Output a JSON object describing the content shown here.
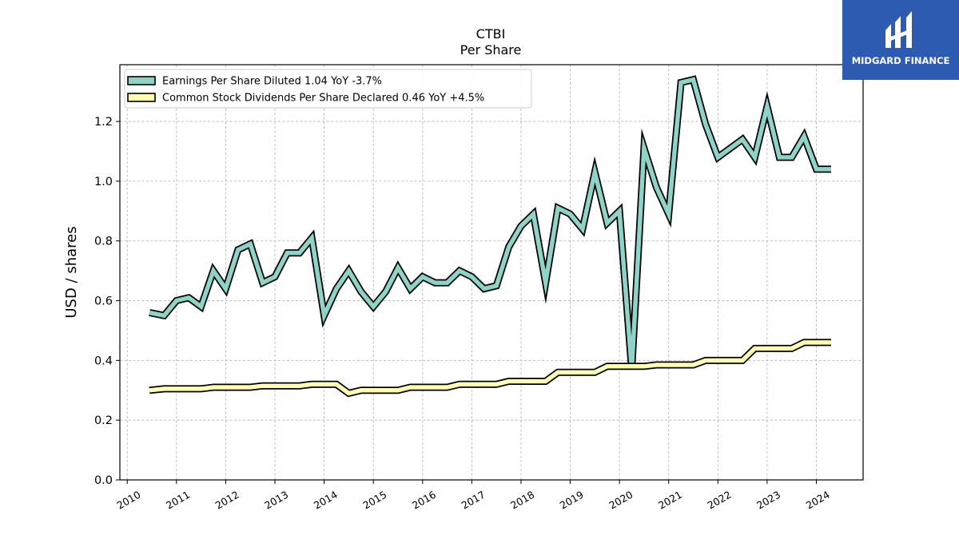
{
  "chart_data": {
    "type": "line",
    "title": "CTBI",
    "subtitle": "Per  Share",
    "ylabel": "USD / shares",
    "xlabel": "",
    "ylim": [
      0,
      1.39
    ],
    "xlim": [
      2009.85,
      2024.95
    ],
    "y_ticks": [
      "0.0",
      "0.2",
      "0.4",
      "0.6",
      "0.8",
      "1.0",
      "1.2"
    ],
    "x_ticks": [
      "2010",
      "2011",
      "2012",
      "2013",
      "2014",
      "2015",
      "2016",
      "2017",
      "2018",
      "2019",
      "2020",
      "2021",
      "2022",
      "2023",
      "2024"
    ],
    "grid": true,
    "legend_position": "top-left",
    "series": [
      {
        "name": "Earnings Per Share Diluted",
        "legend_label": "Earnings Per Share Diluted  1.04 YoY -3.7%",
        "color": "#8dd3c7",
        "x": [
          2010.45,
          2010.75,
          2011.0,
          2011.25,
          2011.5,
          2011.75,
          2012.0,
          2012.25,
          2012.5,
          2012.75,
          2013.0,
          2013.25,
          2013.5,
          2013.75,
          2014.0,
          2014.25,
          2014.5,
          2014.75,
          2015.0,
          2015.25,
          2015.5,
          2015.75,
          2016.0,
          2016.25,
          2016.5,
          2016.75,
          2017.0,
          2017.25,
          2017.5,
          2017.75,
          2018.0,
          2018.25,
          2018.5,
          2018.75,
          2019.0,
          2019.25,
          2019.5,
          2019.75,
          2020.0,
          2020.25,
          2020.5,
          2020.75,
          2021.0,
          2021.25,
          2021.5,
          2021.75,
          2022.0,
          2022.25,
          2022.5,
          2022.75,
          2023.0,
          2023.25,
          2023.5,
          2023.75,
          2024.0,
          2024.3
        ],
        "values": [
          0.56,
          0.55,
          0.6,
          0.61,
          0.58,
          0.7,
          0.64,
          0.77,
          0.79,
          0.66,
          0.68,
          0.76,
          0.76,
          0.81,
          0.55,
          0.64,
          0.7,
          0.63,
          0.58,
          0.63,
          0.71,
          0.64,
          0.68,
          0.66,
          0.66,
          0.7,
          0.68,
          0.64,
          0.65,
          0.78,
          0.85,
          0.89,
          0.66,
          0.91,
          0.89,
          0.84,
          1.03,
          0.86,
          0.9,
          0.37,
          1.11,
          0.98,
          0.89,
          1.33,
          1.34,
          1.19,
          1.08,
          1.11,
          1.14,
          1.08,
          1.25,
          1.08,
          1.08,
          1.15,
          1.04,
          1.04
        ]
      },
      {
        "name": "Common Stock Dividends Per Share Declared",
        "legend_label": "Common Stock Dividends Per Share Declared  0.46 YoY +4.5%",
        "color": "#ffffb3",
        "x": [
          2010.45,
          2010.75,
          2011.0,
          2011.25,
          2011.5,
          2011.75,
          2012.0,
          2012.25,
          2012.5,
          2012.75,
          2013.0,
          2013.25,
          2013.5,
          2013.75,
          2014.0,
          2014.25,
          2014.5,
          2014.75,
          2015.0,
          2015.25,
          2015.5,
          2015.75,
          2016.0,
          2016.25,
          2016.5,
          2016.75,
          2017.0,
          2017.25,
          2017.5,
          2017.75,
          2018.0,
          2018.25,
          2018.5,
          2018.75,
          2019.0,
          2019.25,
          2019.5,
          2019.75,
          2020.0,
          2020.25,
          2020.5,
          2020.75,
          2021.0,
          2021.25,
          2021.5,
          2021.75,
          2022.0,
          2022.25,
          2022.5,
          2022.75,
          2023.0,
          2023.25,
          2023.5,
          2023.75,
          2024.0,
          2024.3
        ],
        "values": [
          0.3,
          0.305,
          0.305,
          0.305,
          0.305,
          0.31,
          0.31,
          0.31,
          0.31,
          0.315,
          0.315,
          0.315,
          0.315,
          0.32,
          0.32,
          0.32,
          0.29,
          0.3,
          0.3,
          0.3,
          0.3,
          0.31,
          0.31,
          0.31,
          0.31,
          0.32,
          0.32,
          0.32,
          0.32,
          0.33,
          0.33,
          0.33,
          0.33,
          0.36,
          0.36,
          0.36,
          0.36,
          0.38,
          0.38,
          0.38,
          0.38,
          0.385,
          0.385,
          0.385,
          0.385,
          0.4,
          0.4,
          0.4,
          0.4,
          0.44,
          0.44,
          0.44,
          0.44,
          0.46,
          0.46,
          0.46
        ]
      }
    ]
  },
  "logo": {
    "text": "MIDGARD FINANCE",
    "background": "#2d5bb2"
  }
}
